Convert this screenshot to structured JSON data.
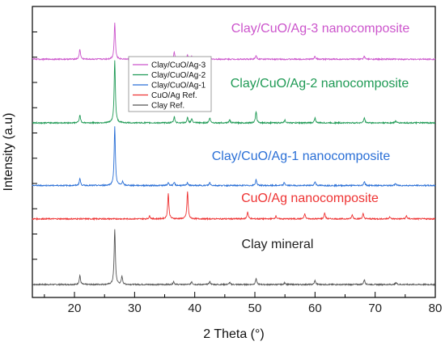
{
  "chart_data": {
    "type": "line",
    "xlabel": "2 Theta (°)",
    "ylabel": "Intensity (a.u)",
    "xlim": [
      13,
      80
    ],
    "x_ticks": [
      20,
      30,
      40,
      50,
      60,
      70,
      80
    ],
    "grid": false,
    "legend_placement": "top-left inside plot",
    "legend": [
      "Clay/CuO/Ag-3",
      "Clay/CuO/Ag-2",
      "Clay/CuO/Ag-1",
      "CuO/Ag Ref.",
      "Clay Ref."
    ],
    "series": [
      {
        "name": "Clay Ref.",
        "color": "#555555",
        "annotation": "Clay mineral",
        "baseline": 0.0,
        "peaks": [
          [
            20.9,
            0.09
          ],
          [
            26.7,
            0.55
          ],
          [
            27.9,
            0.08
          ],
          [
            36.5,
            0.03
          ],
          [
            39.5,
            0.03
          ],
          [
            42.5,
            0.03
          ],
          [
            45.8,
            0.02
          ],
          [
            50.2,
            0.06
          ],
          [
            55.0,
            0.02
          ],
          [
            60.0,
            0.04
          ],
          [
            68.2,
            0.05
          ],
          [
            73.5,
            0.02
          ]
        ]
      },
      {
        "name": "CuO/Ag Ref.",
        "color": "#ee3333",
        "annotation": "CuO/Ag nanocomposite",
        "baseline": 0.65,
        "peaks": [
          [
            32.5,
            0.03
          ],
          [
            35.6,
            0.25
          ],
          [
            38.8,
            0.27
          ],
          [
            48.8,
            0.07
          ],
          [
            53.5,
            0.03
          ],
          [
            58.3,
            0.05
          ],
          [
            61.6,
            0.06
          ],
          [
            66.2,
            0.04
          ],
          [
            68.0,
            0.05
          ],
          [
            72.4,
            0.02
          ],
          [
            75.2,
            0.03
          ]
        ]
      },
      {
        "name": "Clay/CuO/Ag-1",
        "color": "#2a6fd6",
        "annotation": "Clay/CuO/Ag-1 nanocomposite",
        "baseline": 0.98,
        "peaks": [
          [
            20.9,
            0.07
          ],
          [
            26.7,
            0.58
          ],
          [
            28.0,
            0.04
          ],
          [
            35.6,
            0.03
          ],
          [
            36.6,
            0.03
          ],
          [
            38.8,
            0.03
          ],
          [
            42.5,
            0.03
          ],
          [
            50.2,
            0.06
          ],
          [
            54.9,
            0.03
          ],
          [
            60.0,
            0.04
          ],
          [
            68.2,
            0.04
          ],
          [
            73.4,
            0.02
          ]
        ]
      },
      {
        "name": "Clay/CuO/Ag-2",
        "color": "#1f9a55",
        "annotation": "Clay/CuO/Ag-2 nanocomposite",
        "baseline": 1.6,
        "peaks": [
          [
            20.9,
            0.08
          ],
          [
            26.7,
            0.62
          ],
          [
            36.6,
            0.06
          ],
          [
            38.8,
            0.05
          ],
          [
            39.5,
            0.04
          ],
          [
            42.5,
            0.05
          ],
          [
            45.8,
            0.03
          ],
          [
            50.2,
            0.11
          ],
          [
            55.0,
            0.03
          ],
          [
            60.0,
            0.05
          ],
          [
            68.2,
            0.05
          ],
          [
            73.4,
            0.02
          ]
        ]
      },
      {
        "name": "Clay/CuO/Ag-3",
        "color": "#cc55cc",
        "annotation": "Clay/CuO/Ag-3 nanocomposite",
        "baseline": 2.23,
        "peaks": [
          [
            20.9,
            0.1
          ],
          [
            26.7,
            0.36
          ],
          [
            36.6,
            0.07
          ],
          [
            38.8,
            0.04
          ],
          [
            39.5,
            0.03
          ],
          [
            50.2,
            0.04
          ],
          [
            60.0,
            0.03
          ],
          [
            68.2,
            0.03
          ]
        ]
      }
    ]
  }
}
